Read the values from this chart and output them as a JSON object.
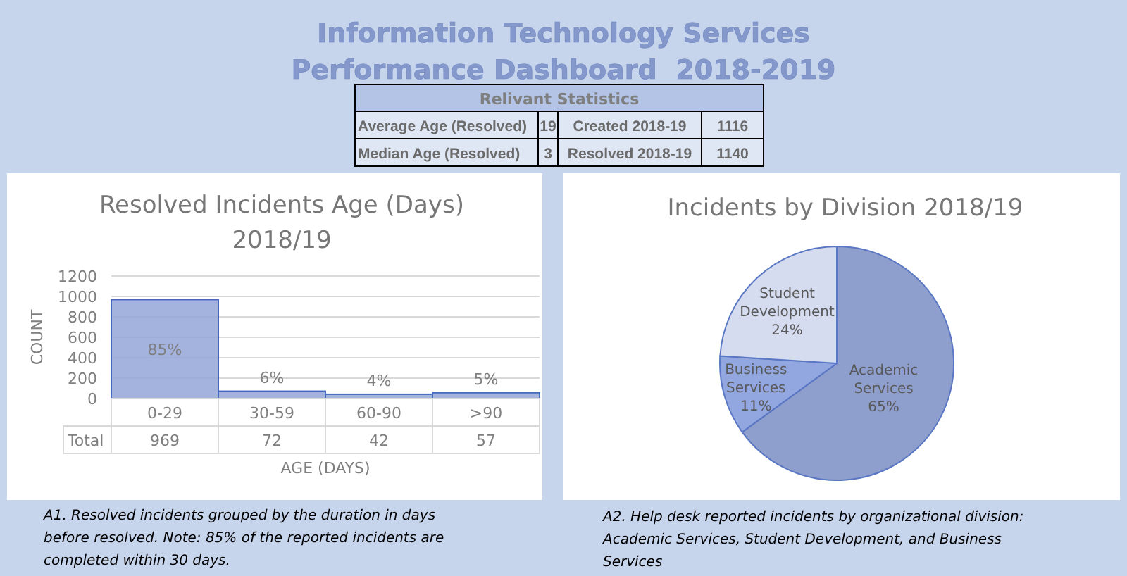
{
  "chart_data": [
    {
      "type": "other",
      "title": "Information Technology Services",
      "subtitle": "Performance Dashboard  2018-2019",
      "annotations": [
        "Relivant Statistics",
        "Average Age (Resolved)",
        "19",
        "Created 2018-19",
        "1116",
        "Median Age (Resolved)",
        "3",
        "Resolved 2018-19",
        "1140"
      ]
    },
    {
      "type": "bar",
      "title": "Resolved Incidents Age (Days)\n2018/19",
      "xlabel": "AGE (DAYS)",
      "ylabel": "COUNT",
      "categories": [
        "0-29",
        "30-59",
        "60-90",
        ">90"
      ],
      "values": [
        969,
        72,
        42,
        57
      ],
      "color": "#94a6d8",
      "ylim": [
        0,
        1200
      ],
      "yticks": [
        0,
        200,
        400,
        600,
        800,
        1000,
        1200
      ],
      "grid": "y",
      "data_labels": true,
      "annotations": [
        {
          "text": "85%",
          "x": "0-29",
          "y": 969
        },
        {
          "text": "6%",
          "x": "30-59",
          "y": 72
        },
        {
          "text": "4%",
          "x": "60-90",
          "y": 42
        },
        {
          "text": "5%",
          "x": ">90",
          "y": 57
        },
        "Total",
        "A1. Resolved incidents grouped by the duration in days\nbefore resolved.  Note: 85% of the reported incidents are\ncompleted  within 30 days."
      ]
    },
    {
      "type": "pie",
      "title": "Incidents by Division 2018/19",
      "categories": [
        "Academic Services",
        "Business Services",
        "Student Development"
      ],
      "values": [
        65,
        11,
        24
      ],
      "colors": [
        "#8e9ecd",
        "#92a6e0",
        "#d6dcef"
      ],
      "value_labels": [
        "65%",
        "11%",
        "24%"
      ],
      "annotations": [
        "A2.  Help desk reported incidents by organizational division:\nAcademic Services,  Student Development,  and Business\nServices"
      ]
    }
  ]
}
